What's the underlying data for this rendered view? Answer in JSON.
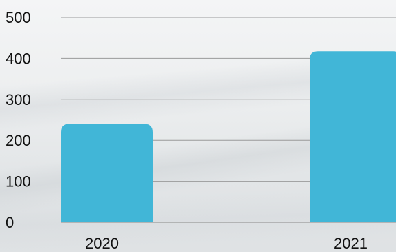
{
  "chart_data": {
    "type": "bar",
    "categories": [
      "2020",
      "2021"
    ],
    "values": [
      240,
      417
    ],
    "ylim": [
      0,
      500
    ],
    "yticks": [
      0,
      100,
      200,
      300,
      400,
      500
    ],
    "grid": true,
    "legend": "none",
    "colors": {
      "bar": "#41b6d7",
      "grid": "#9a9a9a",
      "text": "#111111"
    }
  }
}
